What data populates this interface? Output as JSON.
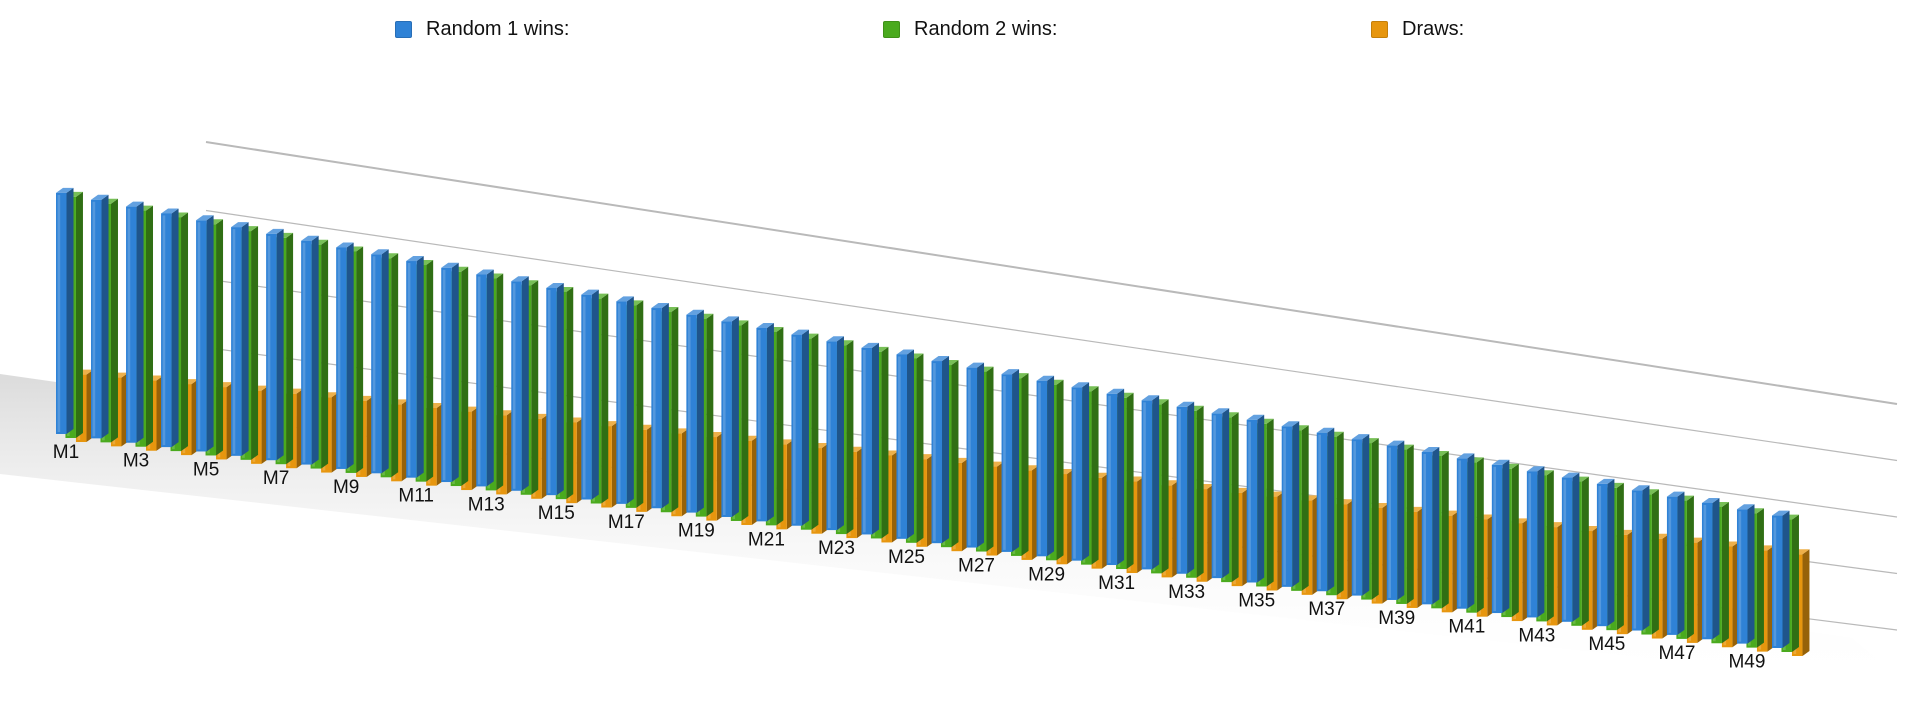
{
  "chart_data": {
    "type": "bar",
    "title": "",
    "xlabel": "",
    "ylabel": "",
    "ylim": [
      0,
      5000
    ],
    "yticks": [
      0,
      1250,
      2500,
      3750,
      5000
    ],
    "legend_position": "top",
    "categories": [
      "M1",
      "M2",
      "M3",
      "M4",
      "M5",
      "M6",
      "M7",
      "M8",
      "M9",
      "M10",
      "M11",
      "M12",
      "M13",
      "M14",
      "M15",
      "M16",
      "M17",
      "M18",
      "M19",
      "M20",
      "M21",
      "M22",
      "M23",
      "M24",
      "M25",
      "M26",
      "M27",
      "M28",
      "M29",
      "M30",
      "M31",
      "M32",
      "M33",
      "M34",
      "M35",
      "M36",
      "M37",
      "M38",
      "M39",
      "M40",
      "M41",
      "M42",
      "M43",
      "M44",
      "M45",
      "M46",
      "M47",
      "M48",
      "M49",
      "M50"
    ],
    "category_labels_shown": [
      "M1",
      "M3",
      "M5",
      "M7",
      "M9",
      "M11",
      "M13",
      "M15",
      "M17",
      "M19",
      "M21",
      "M23",
      "M25",
      "M27",
      "M29",
      "M31",
      "M33",
      "M35",
      "M37",
      "M39",
      "M41",
      "M43",
      "M45",
      "M47",
      "M49"
    ],
    "series": [
      {
        "name": "Random 1 wins:",
        "color": "#2f82d6",
        "values": [
          4400,
          4370,
          4340,
          4310,
          4280,
          4250,
          4220,
          4190,
          4160,
          4130,
          4100,
          4070,
          4040,
          4010,
          3980,
          3950,
          3920,
          3890,
          3860,
          3830,
          3800,
          3770,
          3740,
          3710,
          3680,
          3650,
          3620,
          3590,
          3560,
          3530,
          3500,
          3470,
          3440,
          3410,
          3380,
          3350,
          3320,
          3290,
          3260,
          3230,
          3200,
          3170,
          3140,
          3110,
          3080,
          3050,
          3020,
          2990,
          2960,
          2930
        ]
      },
      {
        "name": "Random 2 wins:",
        "color": "#4aaa1e",
        "values": [
          4400,
          4370,
          4340,
          4310,
          4280,
          4250,
          4220,
          4190,
          4160,
          4130,
          4100,
          4070,
          4040,
          4010,
          3980,
          3950,
          3920,
          3890,
          3860,
          3830,
          3800,
          3770,
          3740,
          3710,
          3680,
          3650,
          3620,
          3590,
          3560,
          3530,
          3500,
          3470,
          3440,
          3410,
          3380,
          3350,
          3320,
          3290,
          3260,
          3230,
          3200,
          3170,
          3140,
          3110,
          3080,
          3050,
          3020,
          2990,
          2960,
          2930
        ]
      },
      {
        "name": "Draws:",
        "color": "#e7960e",
        "values": [
          1230,
          1260,
          1290,
          1310,
          1340,
          1360,
          1390,
          1410,
          1430,
          1450,
          1470,
          1490,
          1510,
          1530,
          1550,
          1570,
          1590,
          1610,
          1630,
          1650,
          1670,
          1690,
          1710,
          1730,
          1750,
          1770,
          1790,
          1810,
          1830,
          1850,
          1870,
          1890,
          1910,
          1930,
          1950,
          1970,
          1990,
          2010,
          2030,
          2050,
          2070,
          2090,
          2110,
          2130,
          2150,
          2170,
          2190,
          2210,
          2230,
          2250
        ]
      }
    ]
  }
}
